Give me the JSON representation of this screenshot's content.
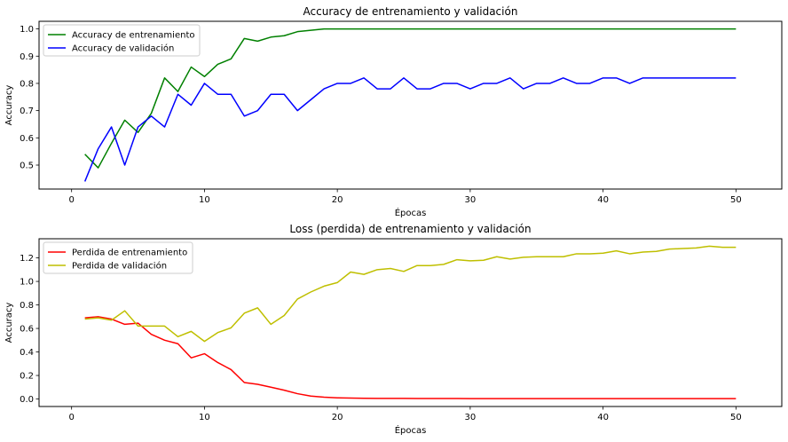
{
  "chart_data": [
    {
      "type": "line",
      "title": "Accuracy de entrenamiento y validación",
      "xlabel": "Épocas",
      "ylabel": "Accuracy",
      "xlim": [
        -2.45,
        53.45
      ],
      "ylim": [
        0.412,
        1.028
      ],
      "xticks": [
        0,
        10,
        20,
        30,
        40,
        50
      ],
      "yticks": [
        0.5,
        0.6,
        0.7,
        0.8,
        0.9,
        1.0
      ],
      "ytick_labels": [
        "0.5",
        "0.6",
        "0.7",
        "0.8",
        "0.9",
        "1.0"
      ],
      "grid": false,
      "legend": "upper left",
      "x": [
        1,
        2,
        3,
        4,
        5,
        6,
        7,
        8,
        9,
        10,
        11,
        12,
        13,
        14,
        15,
        16,
        17,
        18,
        19,
        20,
        21,
        22,
        23,
        24,
        25,
        26,
        27,
        28,
        29,
        30,
        31,
        32,
        33,
        34,
        35,
        36,
        37,
        38,
        39,
        40,
        41,
        42,
        43,
        44,
        45,
        46,
        47,
        48,
        49,
        50
      ],
      "series": [
        {
          "name": "Accuracy de entrenamiento",
          "color": "#008000",
          "values": [
            0.54,
            0.49,
            0.58,
            0.665,
            0.62,
            0.69,
            0.82,
            0.77,
            0.86,
            0.825,
            0.87,
            0.89,
            0.965,
            0.955,
            0.97,
            0.975,
            0.99,
            0.995,
            1.0,
            1.0,
            1.0,
            1.0,
            1.0,
            1.0,
            1.0,
            1.0,
            1.0,
            1.0,
            1.0,
            1.0,
            1.0,
            1.0,
            1.0,
            1.0,
            1.0,
            1.0,
            1.0,
            1.0,
            1.0,
            1.0,
            1.0,
            1.0,
            1.0,
            1.0,
            1.0,
            1.0,
            1.0,
            1.0,
            1.0,
            1.0
          ]
        },
        {
          "name": "Accuracy de validación",
          "color": "#0000ff",
          "values": [
            0.44,
            0.56,
            0.64,
            0.5,
            0.64,
            0.68,
            0.64,
            0.76,
            0.72,
            0.8,
            0.76,
            0.76,
            0.68,
            0.7,
            0.76,
            0.76,
            0.7,
            0.74,
            0.78,
            0.8,
            0.8,
            0.82,
            0.78,
            0.78,
            0.82,
            0.78,
            0.78,
            0.8,
            0.8,
            0.78,
            0.8,
            0.8,
            0.82,
            0.78,
            0.8,
            0.8,
            0.82,
            0.8,
            0.8,
            0.82,
            0.82,
            0.8,
            0.82,
            0.82,
            0.82,
            0.82,
            0.82,
            0.82,
            0.82,
            0.82
          ]
        }
      ]
    },
    {
      "type": "line",
      "title": "Loss (perdida) de entrenamiento y validación",
      "xlabel": "Épocas",
      "ylabel": "Accuracy",
      "xlim": [
        -2.45,
        53.45
      ],
      "ylim": [
        -0.064,
        1.363
      ],
      "xticks": [
        0,
        10,
        20,
        30,
        40,
        50
      ],
      "yticks": [
        0.0,
        0.2,
        0.4,
        0.6,
        0.8,
        1.0,
        1.2
      ],
      "ytick_labels": [
        "0.0",
        "0.2",
        "0.4",
        "0.6",
        "0.8",
        "1.0",
        "1.2"
      ],
      "grid": false,
      "legend": "upper left",
      "x": [
        1,
        2,
        3,
        4,
        5,
        6,
        7,
        8,
        9,
        10,
        11,
        12,
        13,
        14,
        15,
        16,
        17,
        18,
        19,
        20,
        21,
        22,
        23,
        24,
        25,
        26,
        27,
        28,
        29,
        30,
        31,
        32,
        33,
        34,
        35,
        36,
        37,
        38,
        39,
        40,
        41,
        42,
        43,
        44,
        45,
        46,
        47,
        48,
        49,
        50
      ],
      "series": [
        {
          "name": "Perdida de entrenamiento",
          "color": "#ff0000",
          "values": [
            0.69,
            0.7,
            0.68,
            0.635,
            0.645,
            0.55,
            0.5,
            0.47,
            0.35,
            0.385,
            0.31,
            0.25,
            0.14,
            0.125,
            0.1,
            0.075,
            0.045,
            0.025,
            0.015,
            0.01,
            0.008,
            0.006,
            0.005,
            0.005,
            0.005,
            0.004,
            0.004,
            0.004,
            0.004,
            0.003,
            0.003,
            0.003,
            0.003,
            0.003,
            0.003,
            0.003,
            0.003,
            0.003,
            0.003,
            0.003,
            0.003,
            0.003,
            0.003,
            0.003,
            0.003,
            0.003,
            0.003,
            0.003,
            0.003,
            0.003
          ]
        },
        {
          "name": "Perdida de validación",
          "color": "#bfbf00",
          "values": [
            0.68,
            0.69,
            0.67,
            0.75,
            0.62,
            0.62,
            0.62,
            0.53,
            0.575,
            0.49,
            0.565,
            0.605,
            0.73,
            0.775,
            0.635,
            0.71,
            0.85,
            0.91,
            0.96,
            0.99,
            1.08,
            1.06,
            1.1,
            1.11,
            1.085,
            1.135,
            1.135,
            1.145,
            1.185,
            1.175,
            1.18,
            1.21,
            1.19,
            1.205,
            1.21,
            1.21,
            1.21,
            1.235,
            1.235,
            1.24,
            1.26,
            1.235,
            1.25,
            1.255,
            1.275,
            1.28,
            1.285,
            1.3,
            1.29,
            1.29
          ]
        }
      ]
    }
  ]
}
